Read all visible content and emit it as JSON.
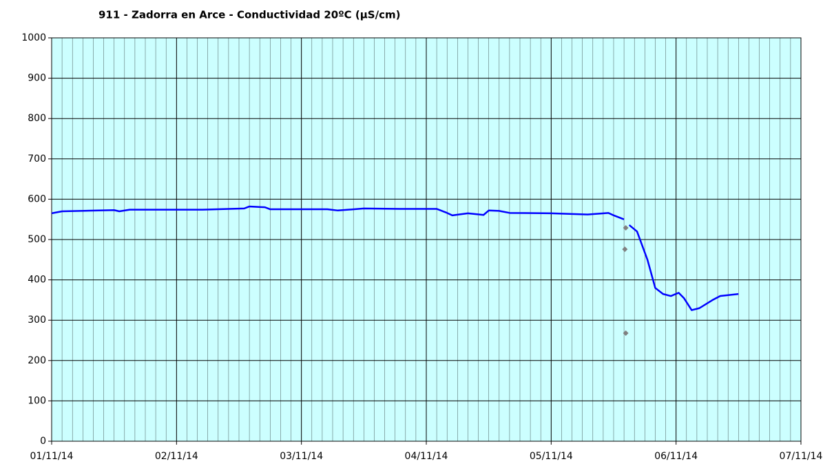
{
  "chart_data": {
    "type": "line",
    "title": "911 - Zadorra en Arce - Conductividad 20ºC (µS/cm)",
    "background": "#ccffff",
    "grid": true,
    "minor_grid_step_hours": 2,
    "xlim": [
      "2014-11-01 00:00",
      "2014-11-07 00:00"
    ],
    "xticks": [
      {
        "value": "2014-11-01 00:00",
        "label": "01/11/14"
      },
      {
        "value": "2014-11-02 00:00",
        "label": "02/11/14"
      },
      {
        "value": "2014-11-03 00:00",
        "label": "03/11/14"
      },
      {
        "value": "2014-11-04 00:00",
        "label": "04/11/14"
      },
      {
        "value": "2014-11-05 00:00",
        "label": "05/11/14"
      },
      {
        "value": "2014-11-06 00:00",
        "label": "06/11/14"
      },
      {
        "value": "2014-11-07 00:00",
        "label": "07/11/14"
      }
    ],
    "ylim": [
      0,
      1000
    ],
    "yticks": [
      0,
      100,
      200,
      300,
      400,
      500,
      600,
      700,
      800,
      900,
      1000
    ],
    "series": [
      {
        "color": "#0000ff",
        "style": "line",
        "x": [
          "2014-11-01 00:00",
          "2014-11-01 02:00",
          "2014-11-01 12:00",
          "2014-11-01 13:00",
          "2014-11-01 15:00",
          "2014-11-02 05:00",
          "2014-11-02 13:00",
          "2014-11-02 14:00",
          "2014-11-02 17:00",
          "2014-11-02 18:00",
          "2014-11-03 05:00",
          "2014-11-03 07:00",
          "2014-11-03 12:00",
          "2014-11-03 19:00",
          "2014-11-04 02:00",
          "2014-11-04 04:00",
          "2014-11-04 05:00",
          "2014-11-04 08:00",
          "2014-11-04 11:00",
          "2014-11-04 12:00",
          "2014-11-04 14:00",
          "2014-11-04 16:00",
          "2014-11-05 00:00",
          "2014-11-05 07:00",
          "2014-11-05 11:00",
          "2014-11-05 12:00",
          "2014-11-05 14:00",
          "2014-11-05 14:30",
          "2014-11-05 15:00",
          "2014-11-05 16:30",
          "2014-11-05 18:30",
          "2014-11-05 20:00",
          "2014-11-05 21:30",
          "2014-11-05 23:00",
          "2014-11-06 00:30",
          "2014-11-06 01:30",
          "2014-11-06 03:00",
          "2014-11-06 04:30",
          "2014-11-06 07:00",
          "2014-11-06 08:30",
          "2014-11-06 12:00"
        ],
        "values": [
          565,
          570,
          573,
          570,
          574,
          574,
          577,
          582,
          580,
          575,
          575,
          572,
          577,
          576,
          576,
          566,
          560,
          565,
          561,
          572,
          571,
          566,
          565,
          562,
          566,
          560,
          550,
          null,
          536,
          520,
          450,
          380,
          365,
          360,
          368,
          355,
          325,
          330,
          350,
          360,
          365
        ]
      },
      {
        "color": "#808080",
        "style": "markers",
        "x": [
          "2014-11-05 14:20",
          "2014-11-05 14:10",
          "2014-11-05 14:20"
        ],
        "values": [
          529,
          476,
          268
        ]
      }
    ]
  }
}
